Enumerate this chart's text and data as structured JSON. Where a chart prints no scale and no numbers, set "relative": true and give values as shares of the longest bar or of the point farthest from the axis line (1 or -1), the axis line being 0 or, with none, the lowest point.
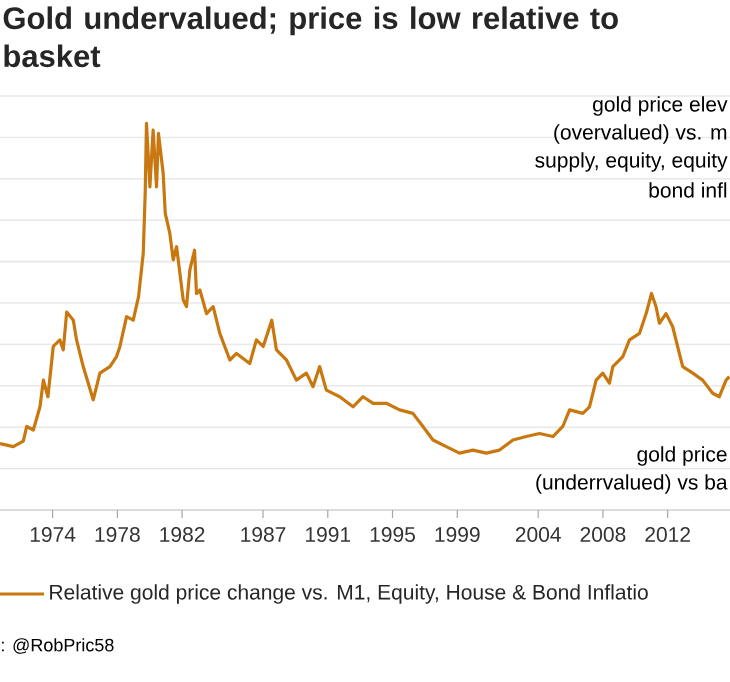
{
  "chart_data": {
    "type": "line",
    "title": "Gold undervalued; price is low relative to basket",
    "relative": true,
    "grid": "y",
    "legend": "bottom",
    "marker": "none",
    "line_style": "solid",
    "xticks": [
      1974,
      1978,
      1982,
      1987,
      1991,
      1995,
      1999,
      2004,
      2008,
      2012
    ],
    "xlim": [
      1970.75,
      2015.85
    ],
    "annotations": [
      "gold price elev",
      "(overvalued) vs.  m",
      "supply, equity,  equity",
      "bond infl",
      "gold price",
      "(underrvalued) vs ba",
      ": @RobPric58"
    ],
    "series": [
      {
        "name": "Relative gold price change vs. M1, Equity, House & Bond Inflatio",
        "color": "#c8780f",
        "x": [
          1970.75,
          1971.57,
          1972.19,
          1972.4,
          1972.81,
          1973.22,
          1973.43,
          1973.71,
          1974.04,
          1974.45,
          1974.66,
          1974.87,
          1975.28,
          1975.48,
          1975.89,
          1976.51,
          1976.92,
          1977.54,
          1977.95,
          1978.16,
          1978.57,
          1978.98,
          1979.31,
          1979.6,
          1979.72,
          1979.8,
          1980.01,
          1980.21,
          1980.42,
          1980.54,
          1980.83,
          1980.96,
          1981.24,
          1981.45,
          1981.66,
          1982.07,
          1982.27,
          1982.48,
          1982.77,
          1982.89,
          1983.1,
          1983.51,
          1983.92,
          1984.33,
          1984.95,
          1985.36,
          1986.18,
          1986.59,
          1987.01,
          1987.54,
          1987.83,
          1988.45,
          1989.06,
          1989.68,
          1990.09,
          1990.5,
          1990.91,
          1991.74,
          1992.56,
          1993.18,
          1993.8,
          1994.62,
          1995.44,
          1996.26,
          1996.88,
          1997.5,
          1998.32,
          1999.14,
          1999.97,
          2000.79,
          2001.61,
          2002.44,
          2003.26,
          2004.08,
          2004.91,
          2005.52,
          2005.94,
          2006.76,
          2007.17,
          2007.58,
          2007.99,
          2008.4,
          2008.61,
          2009.23,
          2009.64,
          2010.26,
          2010.67,
          2011.0,
          2011.28,
          2011.49,
          2011.9,
          2012.31,
          2012.72,
          2012.93,
          2013.55,
          2014.16,
          2014.78,
          2015.19,
          2015.61,
          2015.81
        ],
        "values": [
          0.172,
          0.164,
          0.178,
          0.216,
          0.207,
          0.267,
          0.336,
          0.293,
          0.423,
          0.44,
          0.414,
          0.512,
          0.491,
          0.44,
          0.371,
          0.285,
          0.354,
          0.371,
          0.397,
          0.423,
          0.5,
          0.491,
          0.552,
          0.664,
          0.819,
          1.0,
          0.836,
          0.983,
          0.836,
          0.974,
          0.871,
          0.767,
          0.716,
          0.647,
          0.681,
          0.543,
          0.526,
          0.621,
          0.672,
          0.56,
          0.569,
          0.508,
          0.526,
          0.457,
          0.388,
          0.405,
          0.379,
          0.44,
          0.423,
          0.491,
          0.414,
          0.388,
          0.336,
          0.354,
          0.319,
          0.371,
          0.31,
          0.293,
          0.267,
          0.293,
          0.276,
          0.276,
          0.259,
          0.25,
          0.216,
          0.181,
          0.164,
          0.147,
          0.155,
          0.147,
          0.155,
          0.181,
          0.19,
          0.198,
          0.19,
          0.216,
          0.259,
          0.25,
          0.267,
          0.336,
          0.354,
          0.328,
          0.371,
          0.397,
          0.44,
          0.457,
          0.508,
          0.56,
          0.526,
          0.483,
          0.508,
          0.474,
          0.405,
          0.371,
          0.354,
          0.336,
          0.302,
          0.293,
          0.336,
          0.345
        ]
      }
    ]
  }
}
